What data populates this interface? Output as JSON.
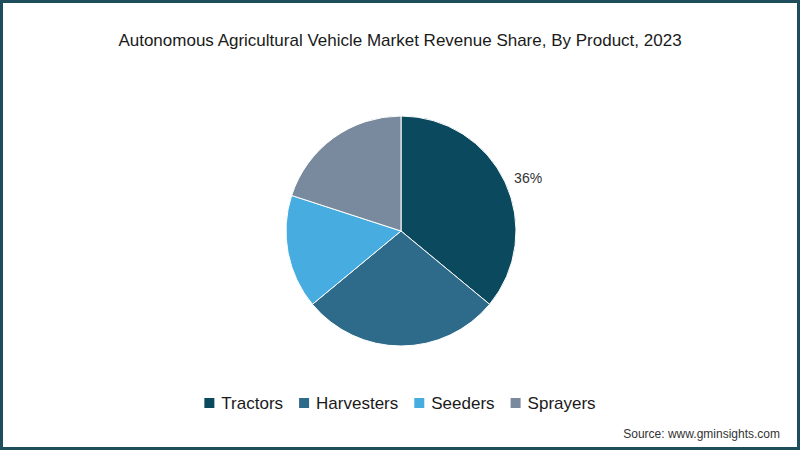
{
  "chart_data": {
    "type": "pie",
    "title": "Autonomous Agricultural Vehicle Market Revenue Share, By Product, 2023",
    "categories": [
      "Tractors",
      "Harvesters",
      "Seeders",
      "Sprayers"
    ],
    "values": [
      36,
      28,
      16,
      20
    ],
    "value_labels": [
      "36%",
      null,
      null,
      null
    ],
    "colors": [
      "#0b4a5e",
      "#2e6b8a",
      "#47ade0",
      "#7a8a9e"
    ],
    "data_labels": true,
    "legend": "bottom",
    "source": "Source: www.gminsights.com"
  }
}
